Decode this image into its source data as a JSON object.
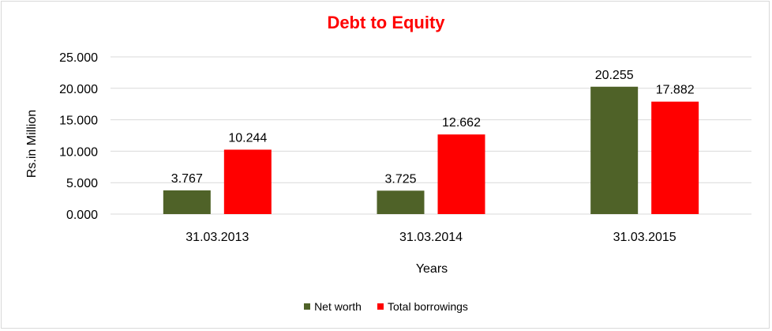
{
  "chart_data": {
    "type": "bar",
    "title": "Debt to Equity",
    "xlabel": "Years",
    "ylabel": "Rs.in Million",
    "categories": [
      "31.03.2013",
      "31.03.2014",
      "31.03.2015"
    ],
    "series": [
      {
        "name": "Net worth",
        "color": "#4f6228",
        "values": [
          3.767,
          3.725,
          20.255
        ],
        "labels": [
          "3.767",
          "3.725",
          "20.255"
        ]
      },
      {
        "name": "Total borrowings",
        "color": "#ff0000",
        "values": [
          10.244,
          12.662,
          17.882
        ],
        "labels": [
          "10.244",
          "12.662",
          "17.882"
        ]
      }
    ],
    "ylim": [
      0,
      25
    ],
    "yticks": [
      0,
      5,
      10,
      15,
      20,
      25
    ],
    "ytick_labels": [
      "0.000",
      "5.000",
      "10.000",
      "15.000",
      "20.000",
      "25.000"
    ],
    "grid": true,
    "legend_position": "bottom"
  }
}
